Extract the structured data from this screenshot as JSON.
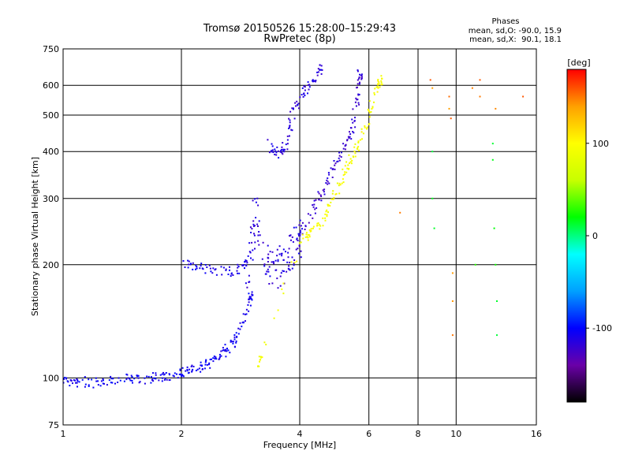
{
  "chart_data": {
    "type": "scatter",
    "title": "Tromsø 20150526 15:28:00–15:29:43",
    "subtitle": "RwPretec (8p)",
    "xlabel": "Frequency [MHz]",
    "ylabel": "Stationary phase Virtual Height [km]",
    "x_scale": "log",
    "y_scale": "log",
    "xlim": [
      1,
      16
    ],
    "ylim": [
      75,
      750
    ],
    "x_ticks": [
      1,
      2,
      4,
      6,
      8,
      10,
      16
    ],
    "x_tick_labels": [
      "1",
      "2",
      "4",
      "6",
      "8",
      "10",
      "16"
    ],
    "y_ticks": [
      75,
      100,
      200,
      300,
      400,
      500,
      600,
      750
    ],
    "y_tick_labels": [
      "75",
      "100",
      "200",
      "300",
      "400",
      "500",
      "600",
      "750"
    ],
    "grid": true,
    "phase_stats": {
      "heading": "Phases",
      "line_o": "mean, sd,O: -90.0, 15.9",
      "line_x": "mean, sd,X:  90.1, 18.1"
    },
    "colorbar": {
      "label": "[deg]",
      "min": -180,
      "max": 180,
      "ticks": [
        100,
        0,
        -100
      ],
      "tick_labels": [
        "100",
        "0",
        "-100"
      ],
      "stops": [
        "#000000",
        "#6a00a8",
        "#0000ff",
        "#00a0ff",
        "#00ffff",
        "#00ff00",
        "#c8ff00",
        "#ffff00",
        "#ffa000",
        "#ff0000"
      ]
    },
    "series": [
      {
        "trace": "o_low_E",
        "phase": -105,
        "points": [
          [
            1.0,
            98
          ],
          [
            1.05,
            97
          ],
          [
            1.1,
            98
          ],
          [
            1.2,
            97
          ],
          [
            1.3,
            98
          ],
          [
            1.4,
            99
          ],
          [
            1.5,
            100
          ],
          [
            1.6,
            99
          ],
          [
            1.7,
            100
          ],
          [
            1.8,
            101
          ],
          [
            1.9,
            102
          ],
          [
            2.0,
            103
          ],
          [
            2.1,
            104
          ],
          [
            2.2,
            106
          ],
          [
            2.3,
            108
          ],
          [
            2.4,
            111
          ],
          [
            2.5,
            114
          ],
          [
            2.6,
            118
          ],
          [
            2.7,
            124
          ],
          [
            2.8,
            132
          ],
          [
            2.9,
            145
          ],
          [
            3.0,
            165
          ]
        ]
      },
      {
        "trace": "o_F1_lower",
        "phase": -110,
        "points": [
          [
            2.05,
            200
          ],
          [
            2.15,
            198
          ],
          [
            2.3,
            195
          ],
          [
            2.5,
            193
          ],
          [
            2.7,
            192
          ],
          [
            2.9,
            200
          ]
        ]
      },
      {
        "trace": "o_spread_3MHz",
        "phase": -115,
        "points": [
          [
            2.95,
            180
          ],
          [
            3.0,
            210
          ],
          [
            3.05,
            250
          ],
          [
            3.1,
            280
          ],
          [
            3.2,
            230
          ],
          [
            3.3,
            200
          ],
          [
            3.4,
            190
          ],
          [
            3.5,
            195
          ],
          [
            3.6,
            200
          ],
          [
            3.7,
            205
          ],
          [
            3.8,
            215
          ],
          [
            3.9,
            225
          ],
          [
            4.0,
            235
          ]
        ]
      },
      {
        "trace": "o_F2",
        "phase": -120,
        "points": [
          [
            4.0,
            240
          ],
          [
            4.2,
            260
          ],
          [
            4.4,
            290
          ],
          [
            4.6,
            320
          ],
          [
            4.8,
            350
          ],
          [
            5.0,
            380
          ],
          [
            5.2,
            410
          ],
          [
            5.4,
            450
          ],
          [
            5.5,
            500
          ],
          [
            5.6,
            560
          ],
          [
            5.7,
            640
          ]
        ]
      },
      {
        "trace": "o_upper_branch",
        "phase": -115,
        "points": [
          [
            3.3,
            420
          ],
          [
            3.5,
            400
          ],
          [
            3.6,
            390
          ],
          [
            3.7,
            430
          ],
          [
            3.8,
            480
          ],
          [
            3.9,
            530
          ],
          [
            4.1,
            570
          ],
          [
            4.3,
            610
          ],
          [
            4.5,
            660
          ]
        ]
      },
      {
        "trace": "x_F2",
        "phase": 95,
        "points": [
          [
            3.1,
            105
          ],
          [
            3.2,
            112
          ],
          [
            4.0,
            230
          ],
          [
            4.2,
            240
          ],
          [
            4.4,
            250
          ],
          [
            4.6,
            265
          ],
          [
            4.8,
            290
          ],
          [
            5.0,
            320
          ],
          [
            5.2,
            350
          ],
          [
            5.4,
            380
          ],
          [
            5.6,
            410
          ],
          [
            5.8,
            450
          ],
          [
            6.0,
            500
          ],
          [
            6.2,
            560
          ],
          [
            6.4,
            620
          ]
        ]
      },
      {
        "trace": "high_freq_scatter",
        "phase": 150,
        "points": [
          [
            7.2,
            275
          ],
          [
            8.6,
            620
          ],
          [
            8.7,
            590
          ],
          [
            9.6,
            560
          ],
          [
            9.6,
            520
          ],
          [
            9.7,
            490
          ],
          [
            9.8,
            190
          ],
          [
            9.8,
            160
          ],
          [
            9.8,
            130
          ],
          [
            11.0,
            590
          ],
          [
            11.5,
            620
          ],
          [
            11.5,
            560
          ],
          [
            12.6,
            520
          ],
          [
            14.8,
            560
          ]
        ]
      },
      {
        "trace": "high_freq_scatter_cool",
        "phase": 20,
        "points": [
          [
            8.7,
            400
          ],
          [
            8.7,
            300
          ],
          [
            8.8,
            250
          ],
          [
            11.2,
            200
          ],
          [
            12.4,
            420
          ],
          [
            12.4,
            380
          ],
          [
            12.5,
            250
          ],
          [
            12.6,
            200
          ],
          [
            12.7,
            160
          ],
          [
            12.7,
            130
          ]
        ]
      }
    ]
  }
}
